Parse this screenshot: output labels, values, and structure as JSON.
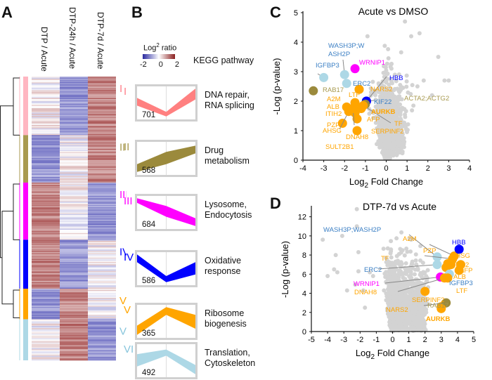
{
  "panels": {
    "A": "A",
    "B": "B",
    "C": "C",
    "D": "D"
  },
  "heatmap": {
    "columns": [
      "DTP / Acute",
      "DTP-24h / Acute",
      "DTP-7d / Acute"
    ],
    "clusters": [
      {
        "id": "I",
        "color": "#ffb6c1",
        "label_color": "#ff7f8a",
        "size": 701,
        "pattern": [
          "neutral",
          "low",
          "high"
        ]
      },
      {
        "id": "II",
        "color": "#a89a50",
        "label_color": "#a89a50",
        "size": 568,
        "pattern": [
          "low",
          "neutral",
          "high"
        ]
      },
      {
        "id": "III",
        "color": "#ff00ff",
        "label_color": "#ff00ff",
        "size": 684,
        "pattern": [
          "high",
          "neutral",
          "low"
        ]
      },
      {
        "id": "IV",
        "color": "#0000ff",
        "label_color": "#0000ff",
        "size": 586,
        "pattern": [
          "high",
          "low",
          "neutral"
        ]
      },
      {
        "id": "V",
        "color": "#ffa500",
        "label_color": "#ffa500",
        "size": 365,
        "pattern": [
          "low",
          "high",
          "neutral"
        ]
      },
      {
        "id": "VI",
        "color": "#add8e6",
        "label_color": "#87c5dc",
        "size": 492,
        "pattern": [
          "neutral",
          "high",
          "low"
        ]
      }
    ],
    "colors": {
      "low": "#4b4bb4",
      "mid": "#ffffff",
      "high": "#9e3a3a"
    }
  },
  "legend": {
    "title_base": "Log",
    "title_sup": "2",
    "title_rest": " ratio",
    "ticks": [
      "-2",
      "0",
      "2"
    ]
  },
  "kegg_header": "KEGG pathway",
  "profiles": [
    {
      "id": "I",
      "count": "701",
      "pathway": "DNA repair,\nRNA splicing",
      "color": "#ff8080",
      "upper": [
        0.35,
        0.8,
        0.05
      ],
      "lower": [
        0.6,
        0.95,
        0.4
      ]
    },
    {
      "id": "II",
      "count": "568",
      "pathway": "Drug\nmetabolism",
      "color": "#9b8a3c",
      "upper": [
        0.7,
        0.3,
        0.1
      ],
      "lower": [
        0.95,
        0.7,
        0.35
      ]
    },
    {
      "id": "III",
      "count": "684",
      "pathway": "Lysosome,\nEndocytosis",
      "color": "#ff00ff",
      "upper": [
        0.05,
        0.3,
        0.7
      ],
      "lower": [
        0.2,
        0.65,
        0.95
      ]
    },
    {
      "id": "IV",
      "count": "586",
      "pathway": "Oxidative\nresponse",
      "color": "#0000ff",
      "upper": [
        0.05,
        0.75,
        0.3
      ],
      "lower": [
        0.3,
        0.95,
        0.7
      ]
    },
    {
      "id": "V",
      "count": "365",
      "pathway": "Ribosome\nbiogenesis",
      "color": "#ffa500",
      "upper": [
        0.65,
        0.05,
        0.3
      ],
      "lower": [
        0.95,
        0.3,
        0.75
      ]
    },
    {
      "id": "VI",
      "count": "492",
      "pathway": "Translation,\nCytoskeleton",
      "color": "#add8e6",
      "upper": [
        0.3,
        0.15,
        0.65
      ],
      "lower": [
        0.7,
        0.35,
        0.95
      ]
    }
  ],
  "chart_data": [
    {
      "type": "scatter",
      "title": "Acute vs DMSO",
      "xlabel": "Log2 Fold Change",
      "ylabel": "-Log (p-value)",
      "xlim": [
        -4,
        4
      ],
      "ylim": [
        0,
        5
      ],
      "xticks": [
        "-4",
        "-3",
        "-2",
        "-1",
        "0",
        "1",
        "2",
        "3",
        "4"
      ],
      "yticks": [
        "0",
        "1",
        "2",
        "3",
        "4",
        "5"
      ],
      "highlighted": [
        {
          "name": "WASH3P;WASH2P",
          "label": "WASH3P;W\nASH2P",
          "x": -2.0,
          "y": 2.9,
          "color": "#add8e6",
          "text_color": "#3b7fc4"
        },
        {
          "name": "IGFBP3",
          "x": -3.0,
          "y": 2.8,
          "color": "#add8e6",
          "text_color": "#3b7fc4"
        },
        {
          "name": "WRNIP1",
          "x": -1.5,
          "y": 3.1,
          "color": "#ff00ff",
          "text_color": "#ff00ff"
        },
        {
          "name": "ERC2",
          "x": -1.9,
          "y": 2.6,
          "color": "#add8e6",
          "text_color": "#3b7fc4"
        },
        {
          "name": "RAB17",
          "x": -3.5,
          "y": 2.35,
          "color": "#9b8a3c",
          "text_color": "#a89a50"
        },
        {
          "name": "HBB",
          "x": -0.95,
          "y": 2.0,
          "color": "#0000ff",
          "text_color": "#0000ff"
        },
        {
          "name": "KIF22",
          "x": -0.95,
          "y": 2.0,
          "color": "#0000ff",
          "text_color": "#3b7fc4"
        },
        {
          "name": "NARS2",
          "x": -1.3,
          "y": 2.4,
          "color": "#ffa500",
          "text_color": "#ffa500"
        },
        {
          "name": "LTF",
          "x": -1.3,
          "y": 2.4,
          "color": "#ffa500",
          "text_color": "#ffa500"
        },
        {
          "name": "ACTA2;ACTG2",
          "x": -1.0,
          "y": 1.9,
          "color": "#9b8a3c",
          "text_color": "#a89a50"
        },
        {
          "name": "A2M",
          "x": -1.5,
          "y": 1.95,
          "color": "#ffa500",
          "text_color": "#ffa500"
        },
        {
          "name": "ALB",
          "x": -1.9,
          "y": 1.8,
          "color": "#ffa500",
          "text_color": "#ffa500"
        },
        {
          "name": "ITIH2",
          "x": -1.7,
          "y": 1.7,
          "color": "#ffa500",
          "text_color": "#ffa500"
        },
        {
          "name": "AURKB",
          "x": -1.2,
          "y": 1.75,
          "color": "#ffa500",
          "text_color": "#ffa500"
        },
        {
          "name": "AFP",
          "x": -1.4,
          "y": 1.4,
          "color": "#ffa500",
          "text_color": "#ffa500"
        },
        {
          "name": "PZP",
          "x": -1.5,
          "y": 1.6,
          "color": "#ffa500",
          "text_color": "#ffa500"
        },
        {
          "name": "TF",
          "x": -1.1,
          "y": 1.85,
          "color": "#ffa500",
          "text_color": "#ffa500"
        },
        {
          "name": "AHSG",
          "x": -2.1,
          "y": 1.25,
          "color": "#ffa500",
          "text_color": "#ffa500"
        },
        {
          "name": "SERPINF2",
          "x": -1.4,
          "y": 1.0,
          "color": "#ffa500",
          "text_color": "#ffa500"
        },
        {
          "name": "DNAH8",
          "x": -1.6,
          "y": 1.75,
          "color": "#ffa500",
          "text_color": "#ffa500"
        },
        {
          "name": "SULT2B1",
          "x": -1.8,
          "y": 1.65,
          "color": "#ffa500",
          "text_color": "#ffa500"
        }
      ]
    },
    {
      "type": "scatter",
      "title": "DTP-7d vs Acute",
      "xlabel": "Log2 Fold Change",
      "ylabel": "-Log (p-value)",
      "xlim": [
        -5,
        5
      ],
      "ylim": [
        0,
        13
      ],
      "xticks": [
        "-5",
        "-4",
        "-3",
        "-2",
        "-1",
        "0",
        "1",
        "2",
        "3",
        "4",
        "5"
      ],
      "yticks": [
        "0",
        "2",
        "4",
        "6",
        "8",
        "10",
        "12"
      ],
      "highlighted": [
        {
          "name": "WASH3P;WASH2P",
          "x": 2.75,
          "y": 7.8,
          "color": "#add8e6",
          "text_color": "#3b7fc4"
        },
        {
          "name": "A2M",
          "x": 3.8,
          "y": 7.9,
          "color": "#ffa500",
          "text_color": "#ffa500"
        },
        {
          "name": "HBB",
          "x": 4.1,
          "y": 8.6,
          "color": "#0000ff",
          "text_color": "#0000ff"
        },
        {
          "name": "PZP",
          "x": 3.7,
          "y": 7.6,
          "color": "#ffa500",
          "text_color": "#ffa500"
        },
        {
          "name": "TF",
          "x": 3.3,
          "y": 6.7,
          "color": "#ffa500",
          "text_color": "#ffa500"
        },
        {
          "name": "AHSG",
          "x": 3.4,
          "y": 7.1,
          "color": "#ffa500",
          "text_color": "#ffa500"
        },
        {
          "name": "ITIH2",
          "x": 3.6,
          "y": 7.0,
          "color": "#ffa500",
          "text_color": "#ffa500"
        },
        {
          "name": "ERC2",
          "x": 2.75,
          "y": 7.0,
          "color": "#add8e6",
          "text_color": "#3b7fc4"
        },
        {
          "name": "AFP",
          "x": 4.2,
          "y": 7.0,
          "color": "#ffa500",
          "text_color": "#ffa500"
        },
        {
          "name": "ALB",
          "x": 4.1,
          "y": 6.4,
          "color": "#ffa500",
          "text_color": "#ffa500"
        },
        {
          "name": "IGFBP3",
          "x": 3.5,
          "y": 6.0,
          "color": "#add8e6",
          "text_color": "#3b7fc4"
        },
        {
          "name": "WRNIP1",
          "x": 2.95,
          "y": 5.7,
          "color": "#ff00ff",
          "text_color": "#ff00ff"
        },
        {
          "name": "LTF",
          "x": 3.4,
          "y": 5.6,
          "color": "#ffa500",
          "text_color": "#ffa500"
        },
        {
          "name": "DNAH8",
          "x": 3.2,
          "y": 5.6,
          "color": "#ffa500",
          "text_color": "#ffa500"
        },
        {
          "name": "SERPINF2",
          "x": 2.0,
          "y": 4.2,
          "color": "#ffa500",
          "text_color": "#ffa500"
        },
        {
          "name": "NARS2",
          "x": 3.0,
          "y": 2.6,
          "color": "#ffa500",
          "text_color": "#ffa500"
        },
        {
          "name": "RAB17",
          "x": 3.3,
          "y": 3.0,
          "color": "#9b8a3c",
          "text_color": "#a89a50"
        },
        {
          "name": "AURKB",
          "x": 3.0,
          "y": 2.4,
          "color": "#ffa500",
          "text_color": "#ffa500",
          "bold": true
        }
      ]
    }
  ]
}
